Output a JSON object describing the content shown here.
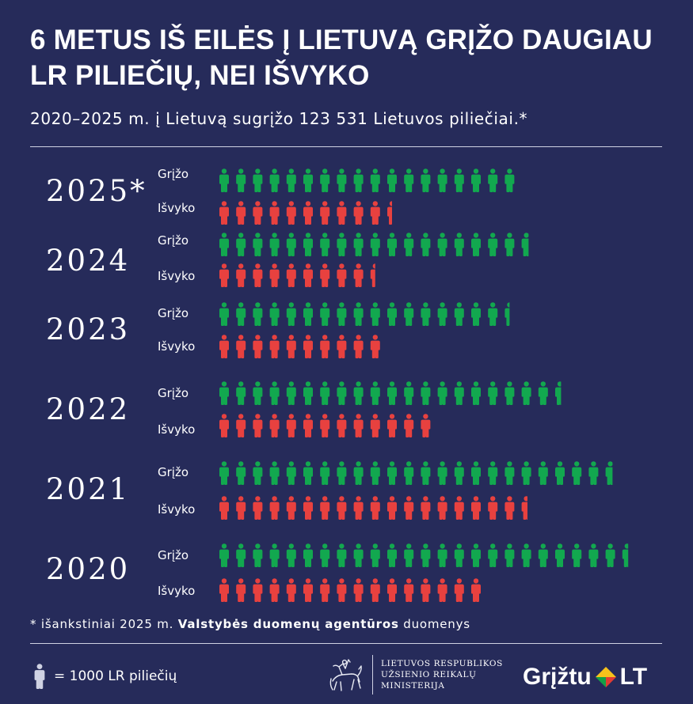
{
  "header": {
    "title": "6 METUS IŠ EILĖS Į LIETUVĄ GRĮŽO DAUGIAU LR PILIEČIŲ, NEI IŠVYKO",
    "subtitle": "2020–2025 m. į Lietuvą sugrįžo 123 531 Lietuvos piliečiai.*"
  },
  "labels": {
    "returned": "Grįžo",
    "left": "Išvyko"
  },
  "colors": {
    "background": "#262b5a",
    "returned": "#12a84f",
    "left": "#e8413f",
    "text": "#ffffff"
  },
  "chart_data": {
    "type": "bar",
    "unit": "= 1000 LR piliečių",
    "categories": [
      "2025*",
      "2024",
      "2023",
      "2022",
      "2021",
      "2020"
    ],
    "series": [
      {
        "name": "Grįžo",
        "values": [
          18,
          18.7,
          17.5,
          20.6,
          23.7,
          24.6
        ]
      },
      {
        "name": "Išvyko",
        "values": [
          10.5,
          9.5,
          10,
          13,
          18.6,
          16
        ]
      }
    ]
  },
  "footnote": {
    "prefix": "* išankstiniai 2025 m. ",
    "bold": "Valstybės duomenų agentūros",
    "suffix": " duomenys"
  },
  "legend": {
    "text": "= 1000 LR piliečių",
    "icon": "person-icon"
  },
  "ministry": {
    "line1": "LIETUVOS RESPUBLIKOS",
    "line2": "UŽSIENIO REIKALŲ",
    "line3": "MINISTERIJA"
  },
  "brand": {
    "name": "Grįžtu",
    "suffix": "LT"
  }
}
